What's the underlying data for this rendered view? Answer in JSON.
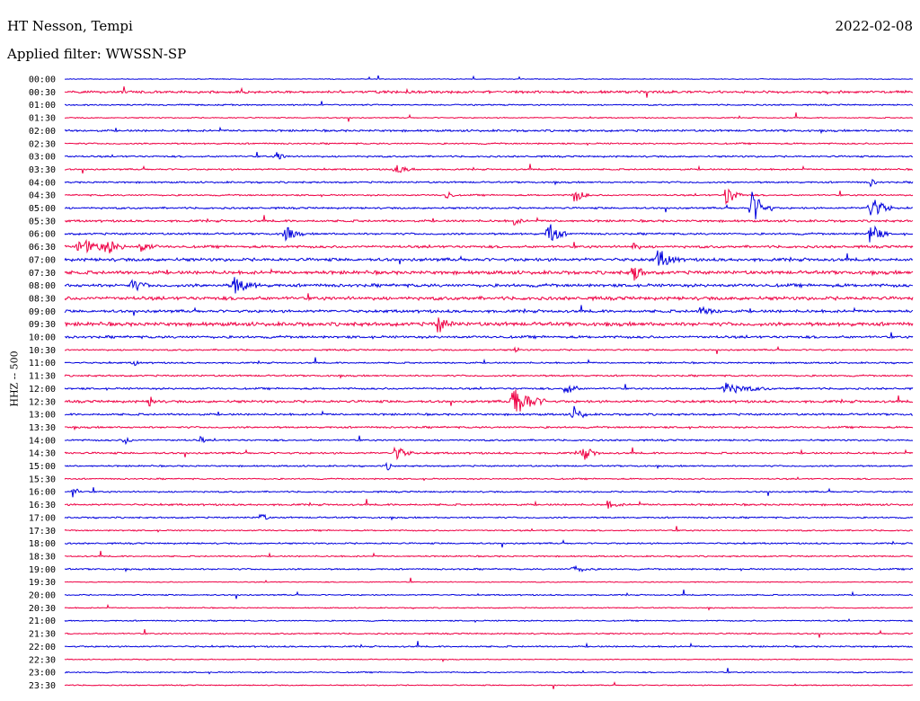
{
  "header": {
    "station": "HT Nesson, Tempi",
    "filter": "Applied filter: WWSSN-SP",
    "date": "2022-02-08"
  },
  "chart_data": {
    "type": "line",
    "ylabel": "HHZ -- 500",
    "colors": [
      "#0000dd",
      "#ee0044"
    ],
    "rows": [
      {
        "label": "00:00",
        "color": "#0000dd",
        "noise": 0.5,
        "events": []
      },
      {
        "label": "00:30",
        "color": "#ee0044",
        "noise": 1.6,
        "events": []
      },
      {
        "label": "01:00",
        "color": "#0000dd",
        "noise": 0.9,
        "events": []
      },
      {
        "label": "01:30",
        "color": "#ee0044",
        "noise": 0.7,
        "events": []
      },
      {
        "label": "02:00",
        "color": "#0000dd",
        "noise": 1.3,
        "events": []
      },
      {
        "label": "02:30",
        "color": "#ee0044",
        "noise": 1.0,
        "events": []
      },
      {
        "label": "03:00",
        "color": "#0000dd",
        "noise": 1.1,
        "events": [
          [
            0.25,
            6,
            6
          ]
        ]
      },
      {
        "label": "03:30",
        "color": "#ee0044",
        "noise": 1.0,
        "events": [
          [
            0.39,
            5,
            10
          ]
        ]
      },
      {
        "label": "04:00",
        "color": "#0000dd",
        "noise": 1.1,
        "events": [
          [
            0.95,
            4,
            5
          ]
        ]
      },
      {
        "label": "04:30",
        "color": "#ee0044",
        "noise": 1.0,
        "events": [
          [
            0.45,
            8,
            4
          ],
          [
            0.6,
            11,
            7
          ],
          [
            0.78,
            13,
            8
          ]
        ]
      },
      {
        "label": "05:00",
        "color": "#0000dd",
        "noise": 1.2,
        "events": [
          [
            0.81,
            20,
            10
          ],
          [
            0.95,
            16,
            10
          ]
        ]
      },
      {
        "label": "05:30",
        "color": "#ee0044",
        "noise": 1.4,
        "events": [
          [
            0.53,
            5,
            5
          ]
        ]
      },
      {
        "label": "06:00",
        "color": "#0000dd",
        "noise": 1.3,
        "events": [
          [
            0.26,
            10,
            8
          ],
          [
            0.57,
            16,
            8
          ],
          [
            0.95,
            14,
            8
          ]
        ]
      },
      {
        "label": "06:30",
        "color": "#ee0044",
        "noise": 1.6,
        "events": [
          [
            0.02,
            8,
            20
          ],
          [
            0.05,
            7,
            8
          ],
          [
            0.09,
            6,
            8
          ],
          [
            0.67,
            7,
            4
          ]
        ]
      },
      {
        "label": "07:00",
        "color": "#0000dd",
        "noise": 2.0,
        "events": [
          [
            0.7,
            12,
            10
          ]
        ]
      },
      {
        "label": "07:30",
        "color": "#ee0044",
        "noise": 2.2,
        "events": [
          [
            0.67,
            14,
            6
          ]
        ]
      },
      {
        "label": "08:00",
        "color": "#0000dd",
        "noise": 2.0,
        "events": [
          [
            0.08,
            7,
            8
          ],
          [
            0.2,
            10,
            12
          ]
        ]
      },
      {
        "label": "08:30",
        "color": "#ee0044",
        "noise": 2.2,
        "events": []
      },
      {
        "label": "09:00",
        "color": "#0000dd",
        "noise": 1.8,
        "events": [
          [
            0.75,
            4,
            12
          ]
        ]
      },
      {
        "label": "09:30",
        "color": "#ee0044",
        "noise": 2.4,
        "events": [
          [
            0.44,
            10,
            8
          ]
        ]
      },
      {
        "label": "10:00",
        "color": "#0000dd",
        "noise": 1.6,
        "events": []
      },
      {
        "label": "10:30",
        "color": "#ee0044",
        "noise": 1.0,
        "events": [
          [
            0.53,
            6,
            3
          ]
        ]
      },
      {
        "label": "11:00",
        "color": "#0000dd",
        "noise": 1.0,
        "events": [
          [
            0.08,
            5,
            4
          ]
        ]
      },
      {
        "label": "11:30",
        "color": "#ee0044",
        "noise": 1.1,
        "events": []
      },
      {
        "label": "12:00",
        "color": "#0000dd",
        "noise": 1.2,
        "events": [
          [
            0.59,
            10,
            7
          ],
          [
            0.78,
            6,
            20
          ]
        ]
      },
      {
        "label": "12:30",
        "color": "#ee0044",
        "noise": 1.6,
        "events": [
          [
            0.53,
            20,
            14
          ],
          [
            0.1,
            6,
            5
          ]
        ]
      },
      {
        "label": "13:00",
        "color": "#0000dd",
        "noise": 1.3,
        "events": [
          [
            0.6,
            10,
            7
          ]
        ]
      },
      {
        "label": "13:30",
        "color": "#ee0044",
        "noise": 1.2,
        "events": []
      },
      {
        "label": "14:00",
        "color": "#0000dd",
        "noise": 1.1,
        "events": [
          [
            0.07,
            5,
            5
          ],
          [
            0.16,
            5,
            3
          ]
        ]
      },
      {
        "label": "14:30",
        "color": "#ee0044",
        "noise": 1.2,
        "events": [
          [
            0.39,
            9,
            8
          ],
          [
            0.61,
            10,
            8
          ]
        ]
      },
      {
        "label": "15:00",
        "color": "#0000dd",
        "noise": 1.0,
        "events": [
          [
            0.38,
            5,
            4
          ]
        ]
      },
      {
        "label": "15:30",
        "color": "#ee0044",
        "noise": 0.9,
        "events": []
      },
      {
        "label": "16:00",
        "color": "#0000dd",
        "noise": 1.0,
        "events": [
          [
            0.01,
            8,
            4
          ]
        ]
      },
      {
        "label": "16:30",
        "color": "#ee0044",
        "noise": 1.2,
        "events": [
          [
            0.64,
            4,
            8
          ]
        ]
      },
      {
        "label": "17:00",
        "color": "#0000dd",
        "noise": 1.0,
        "events": [
          [
            0.23,
            9,
            4
          ]
        ]
      },
      {
        "label": "17:30",
        "color": "#ee0044",
        "noise": 0.9,
        "events": []
      },
      {
        "label": "18:00",
        "color": "#0000dd",
        "noise": 1.0,
        "events": []
      },
      {
        "label": "18:30",
        "color": "#ee0044",
        "noise": 0.9,
        "events": []
      },
      {
        "label": "19:00",
        "color": "#0000dd",
        "noise": 1.0,
        "events": [
          [
            0.6,
            4,
            10
          ]
        ]
      },
      {
        "label": "19:30",
        "color": "#ee0044",
        "noise": 0.6,
        "events": []
      },
      {
        "label": "20:00",
        "color": "#0000dd",
        "noise": 0.8,
        "events": []
      },
      {
        "label": "20:30",
        "color": "#ee0044",
        "noise": 0.7,
        "events": []
      },
      {
        "label": "21:00",
        "color": "#0000dd",
        "noise": 0.8,
        "events": []
      },
      {
        "label": "21:30",
        "color": "#ee0044",
        "noise": 0.9,
        "events": []
      },
      {
        "label": "22:00",
        "color": "#0000dd",
        "noise": 1.0,
        "events": []
      },
      {
        "label": "22:30",
        "color": "#ee0044",
        "noise": 0.6,
        "events": []
      },
      {
        "label": "23:00",
        "color": "#0000dd",
        "noise": 0.8,
        "events": []
      },
      {
        "label": "23:30",
        "color": "#ee0044",
        "noise": 0.7,
        "events": []
      }
    ]
  }
}
